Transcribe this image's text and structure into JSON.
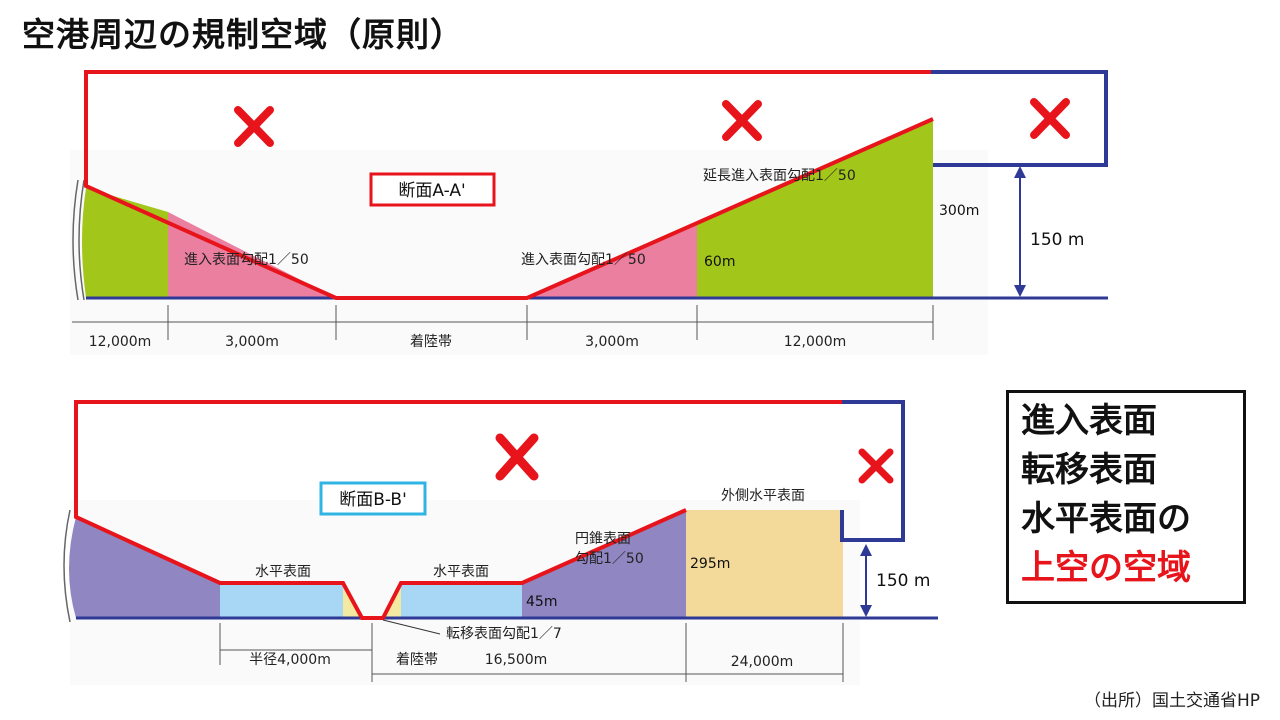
{
  "title": "空港周辺の規制空域（原則）",
  "section_a": {
    "label": "断面A-A'",
    "approach_left": "進入表面勾配1／50",
    "approach_right": "進入表面勾配1／50",
    "extended": "延長進入表面勾配1／50",
    "h60": "60m",
    "h300": "300m",
    "h150": "150 m",
    "dims": [
      "12,000m",
      "3,000m",
      "着陸帯",
      "3,000m",
      "12,000m"
    ]
  },
  "section_b": {
    "label": "断面B-B'",
    "horizontal_left": "水平表面",
    "horizontal_right": "水平表面",
    "conical_line1": "円錐表面",
    "conical_line2": "勾配1／50",
    "outer_horizontal": "外側水平表面",
    "h45": "45m",
    "h295": "295m",
    "h150": "150 m",
    "transitional": "転移表面勾配1／7",
    "landing": "着陸帯",
    "dims": [
      "半径4,000m",
      "16,500m",
      "24,000m"
    ]
  },
  "legend": {
    "line1": "進入表面",
    "line2": "転移表面",
    "line3": "水平表面の",
    "line4": "上空の空域"
  },
  "source": "（出所）国土交通省HP",
  "colors": {
    "red": "#e8141b",
    "blue": "#2f3a96",
    "green": "#a3c61a",
    "pink": "#ea7fa0",
    "purple": "#8f86c2",
    "lightblue": "#a8d6f5",
    "tan": "#f3da9a",
    "cyan_box": "#2fb4e3"
  }
}
